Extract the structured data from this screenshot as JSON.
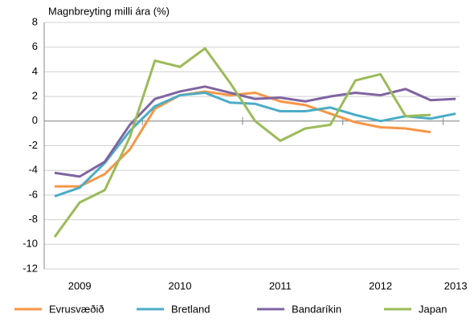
{
  "chart_data": {
    "type": "line",
    "title": "Magnbreyting milli ára (%)",
    "categories": [
      null,
      "2009",
      null,
      null,
      null,
      "2010",
      null,
      null,
      null,
      "2011",
      null,
      null,
      null,
      "2012",
      null,
      null,
      "2013"
    ],
    "ylim": [
      -12,
      8
    ],
    "yticks": [
      -12,
      -10,
      -8,
      -6,
      -4,
      -2,
      0,
      2,
      4,
      6,
      8
    ],
    "grid": true,
    "series": [
      {
        "name": "Evrusvæðið",
        "color": "#f79646",
        "values": [
          -5.3,
          -5.3,
          -4.3,
          -2.3,
          1.0,
          2.1,
          2.4,
          2.1,
          2.3,
          1.6,
          1.3,
          0.6,
          -0.1,
          -0.5,
          -0.6,
          -0.9,
          null
        ]
      },
      {
        "name": "Bretland",
        "color": "#4bacc6",
        "values": [
          -6.1,
          -5.4,
          -3.4,
          -0.8,
          1.2,
          2.1,
          2.3,
          1.5,
          1.4,
          0.8,
          0.8,
          1.1,
          0.5,
          0.0,
          0.4,
          0.2,
          0.6
        ]
      },
      {
        "name": "Bandaríkin",
        "color": "#8064a2",
        "values": [
          -4.2,
          -4.5,
          -3.3,
          -0.3,
          1.8,
          2.4,
          2.8,
          2.3,
          1.8,
          1.9,
          1.6,
          2.0,
          2.3,
          2.1,
          2.6,
          1.7,
          1.8
        ]
      },
      {
        "name": "Japan",
        "color": "#9bbb59",
        "values": [
          -9.4,
          -6.6,
          -5.6,
          -1.3,
          4.9,
          4.4,
          5.9,
          3.1,
          0.0,
          -1.6,
          -0.6,
          -0.3,
          3.3,
          3.8,
          0.4,
          0.5,
          null
        ]
      }
    ]
  }
}
